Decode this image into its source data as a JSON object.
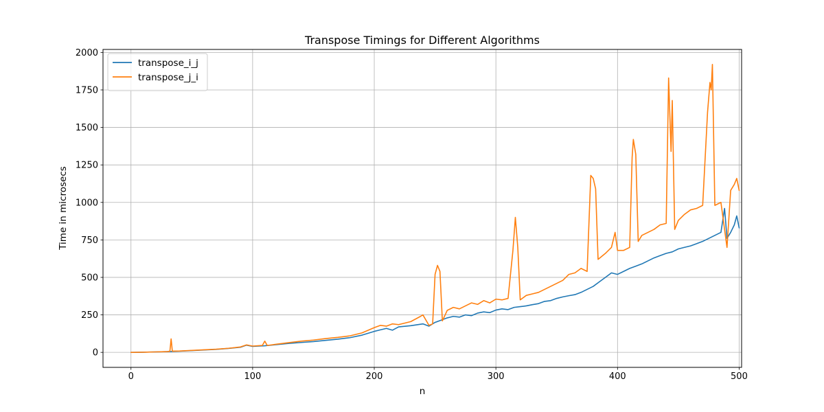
{
  "chart_data": {
    "type": "line",
    "title": "Transpose Timings for Different Algorithms",
    "xlabel": "n",
    "ylabel": "Time in microsecs",
    "xlim": [
      -23,
      502
    ],
    "ylim": [
      -100,
      2020
    ],
    "xticks": [
      0,
      100,
      200,
      300,
      400,
      500
    ],
    "yticks": [
      0,
      250,
      500,
      750,
      1000,
      1250,
      1500,
      1750,
      2000
    ],
    "grid": true,
    "legend_position": "top-left",
    "series": [
      {
        "name": "transpose_i_j",
        "color": "#1f77b4",
        "points": [
          [
            0,
            0
          ],
          [
            10,
            1
          ],
          [
            20,
            3
          ],
          [
            30,
            5
          ],
          [
            40,
            8
          ],
          [
            50,
            12
          ],
          [
            60,
            16
          ],
          [
            70,
            20
          ],
          [
            80,
            26
          ],
          [
            90,
            34
          ],
          [
            95,
            48
          ],
          [
            100,
            40
          ],
          [
            110,
            44
          ],
          [
            120,
            52
          ],
          [
            130,
            60
          ],
          [
            140,
            66
          ],
          [
            150,
            72
          ],
          [
            160,
            80
          ],
          [
            170,
            88
          ],
          [
            180,
            98
          ],
          [
            190,
            115
          ],
          [
            200,
            140
          ],
          [
            205,
            150
          ],
          [
            210,
            160
          ],
          [
            215,
            148
          ],
          [
            220,
            170
          ],
          [
            230,
            178
          ],
          [
            240,
            190
          ],
          [
            245,
            175
          ],
          [
            250,
            200
          ],
          [
            255,
            215
          ],
          [
            260,
            230
          ],
          [
            265,
            240
          ],
          [
            270,
            235
          ],
          [
            275,
            250
          ],
          [
            280,
            245
          ],
          [
            285,
            262
          ],
          [
            290,
            270
          ],
          [
            295,
            265
          ],
          [
            300,
            282
          ],
          [
            305,
            290
          ],
          [
            310,
            285
          ],
          [
            315,
            300
          ],
          [
            320,
            305
          ],
          [
            325,
            310
          ],
          [
            330,
            318
          ],
          [
            335,
            325
          ],
          [
            340,
            340
          ],
          [
            345,
            345
          ],
          [
            350,
            360
          ],
          [
            355,
            370
          ],
          [
            360,
            378
          ],
          [
            365,
            385
          ],
          [
            370,
            400
          ],
          [
            375,
            420
          ],
          [
            380,
            440
          ],
          [
            385,
            470
          ],
          [
            390,
            500
          ],
          [
            395,
            530
          ],
          [
            400,
            520
          ],
          [
            405,
            540
          ],
          [
            410,
            560
          ],
          [
            415,
            575
          ],
          [
            420,
            590
          ],
          [
            425,
            610
          ],
          [
            430,
            630
          ],
          [
            435,
            645
          ],
          [
            440,
            660
          ],
          [
            445,
            670
          ],
          [
            450,
            690
          ],
          [
            455,
            700
          ],
          [
            460,
            710
          ],
          [
            465,
            725
          ],
          [
            470,
            740
          ],
          [
            475,
            760
          ],
          [
            480,
            780
          ],
          [
            485,
            800
          ],
          [
            488,
            960
          ],
          [
            490,
            760
          ],
          [
            493,
            800
          ],
          [
            496,
            850
          ],
          [
            498,
            910
          ],
          [
            500,
            830
          ]
        ]
      },
      {
        "name": "transpose_j_i",
        "color": "#ff7f0e",
        "points": [
          [
            0,
            0
          ],
          [
            10,
            1
          ],
          [
            20,
            3
          ],
          [
            30,
            5
          ],
          [
            32,
            8
          ],
          [
            33,
            90
          ],
          [
            34,
            8
          ],
          [
            40,
            9
          ],
          [
            50,
            13
          ],
          [
            60,
            17
          ],
          [
            70,
            21
          ],
          [
            80,
            27
          ],
          [
            90,
            36
          ],
          [
            95,
            50
          ],
          [
            100,
            42
          ],
          [
            108,
            46
          ],
          [
            110,
            75
          ],
          [
            112,
            46
          ],
          [
            120,
            55
          ],
          [
            130,
            65
          ],
          [
            140,
            75
          ],
          [
            150,
            82
          ],
          [
            160,
            92
          ],
          [
            170,
            100
          ],
          [
            180,
            110
          ],
          [
            190,
            130
          ],
          [
            200,
            165
          ],
          [
            205,
            180
          ],
          [
            210,
            175
          ],
          [
            215,
            190
          ],
          [
            220,
            185
          ],
          [
            230,
            205
          ],
          [
            238,
            240
          ],
          [
            240,
            250
          ],
          [
            245,
            180
          ],
          [
            248,
            190
          ],
          [
            250,
            520
          ],
          [
            252,
            580
          ],
          [
            254,
            540
          ],
          [
            256,
            210
          ],
          [
            260,
            280
          ],
          [
            265,
            300
          ],
          [
            270,
            290
          ],
          [
            275,
            310
          ],
          [
            280,
            330
          ],
          [
            285,
            320
          ],
          [
            290,
            345
          ],
          [
            295,
            330
          ],
          [
            300,
            355
          ],
          [
            305,
            350
          ],
          [
            310,
            360
          ],
          [
            314,
            680
          ],
          [
            316,
            900
          ],
          [
            318,
            700
          ],
          [
            320,
            350
          ],
          [
            325,
            380
          ],
          [
            330,
            390
          ],
          [
            335,
            400
          ],
          [
            340,
            420
          ],
          [
            345,
            440
          ],
          [
            350,
            460
          ],
          [
            355,
            480
          ],
          [
            360,
            520
          ],
          [
            365,
            530
          ],
          [
            370,
            560
          ],
          [
            375,
            540
          ],
          [
            378,
            1180
          ],
          [
            380,
            1160
          ],
          [
            382,
            1090
          ],
          [
            384,
            620
          ],
          [
            390,
            660
          ],
          [
            395,
            700
          ],
          [
            398,
            800
          ],
          [
            400,
            680
          ],
          [
            405,
            680
          ],
          [
            410,
            700
          ],
          [
            412,
            1300
          ],
          [
            413,
            1420
          ],
          [
            415,
            1320
          ],
          [
            417,
            740
          ],
          [
            420,
            780
          ],
          [
            425,
            800
          ],
          [
            430,
            820
          ],
          [
            435,
            850
          ],
          [
            440,
            860
          ],
          [
            442,
            1830
          ],
          [
            444,
            1340
          ],
          [
            445,
            1680
          ],
          [
            447,
            820
          ],
          [
            450,
            880
          ],
          [
            455,
            920
          ],
          [
            460,
            950
          ],
          [
            465,
            960
          ],
          [
            470,
            980
          ],
          [
            474,
            1600
          ],
          [
            476,
            1800
          ],
          [
            477,
            1750
          ],
          [
            478,
            1920
          ],
          [
            480,
            980
          ],
          [
            485,
            1000
          ],
          [
            490,
            700
          ],
          [
            493,
            1080
          ],
          [
            496,
            1120
          ],
          [
            498,
            1160
          ],
          [
            500,
            1080
          ]
        ]
      }
    ]
  }
}
